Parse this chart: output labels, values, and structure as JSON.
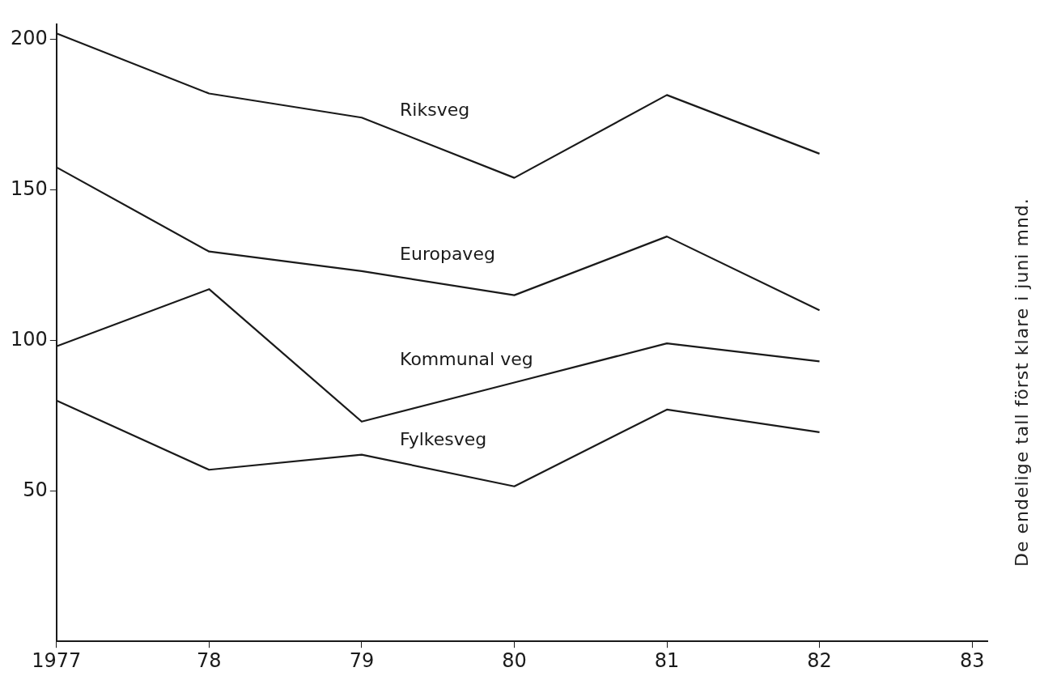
{
  "chart_data": {
    "type": "line",
    "x": [
      1977,
      1978,
      1979,
      1980,
      1981,
      1982
    ],
    "xlim": [
      1977,
      1983.1
    ],
    "xticks": [
      1977,
      {
        "value": 1978,
        "label": "78"
      },
      {
        "value": 1979,
        "label": "79"
      },
      {
        "value": 1980,
        "label": "80"
      },
      {
        "value": 1981,
        "label": "81"
      },
      {
        "value": 1982,
        "label": "82"
      },
      {
        "value": 1983,
        "label": "83"
      }
    ],
    "ylim": [
      0,
      205
    ],
    "yticks": [
      50,
      100,
      150,
      200
    ],
    "series": [
      {
        "name": "Riksveg",
        "color": "#1a1a1a",
        "values": [
          202,
          182,
          174,
          154,
          181.5,
          162
        ]
      },
      {
        "name": "Europaveg",
        "color": "#1a1a1a",
        "values": [
          157.5,
          129.5,
          123,
          115,
          134.5,
          110
        ]
      },
      {
        "name": "Kommunal veg",
        "color": "#1a1a1a",
        "values": [
          98,
          117,
          73,
          86,
          99,
          93
        ]
      },
      {
        "name": "Fylkesveg",
        "color": "#1a1a1a",
        "values": [
          80,
          57,
          62,
          51.5,
          77,
          69.5
        ]
      }
    ],
    "annotations": [
      "De endelige tall först klare i juni mnd."
    ],
    "grid": false,
    "legend": false,
    "marker": "none",
    "line_style": "solid"
  }
}
